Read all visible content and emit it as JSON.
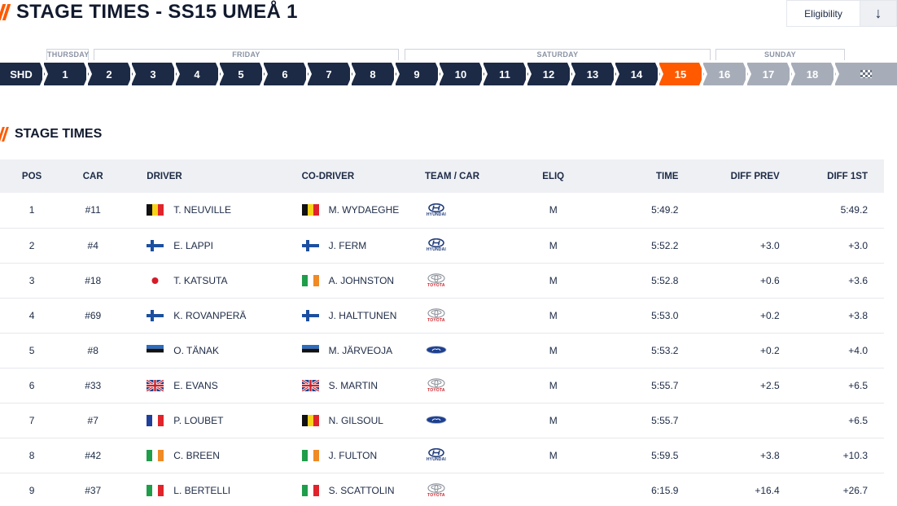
{
  "header": {
    "title": "STAGE TIMES - SS15 UMEÅ 1",
    "eligibility_label": "Eligibility",
    "sort_icon": "arrow-down-icon"
  },
  "days": [
    "THURSDAY",
    "FRIDAY",
    "SATURDAY",
    "SUNDAY"
  ],
  "stages": [
    "SHD",
    "1",
    "2",
    "3",
    "4",
    "5",
    "6",
    "7",
    "8",
    "9",
    "10",
    "11",
    "12",
    "13",
    "14",
    "15",
    "16",
    "17",
    "18"
  ],
  "current_stage": "15",
  "finish_icon": "checkered-flag-icon",
  "colors": {
    "accent": "#ff5a00",
    "navy": "#1c2a45",
    "grey": "#a7adb8"
  },
  "section": {
    "title": "STAGE TIMES"
  },
  "table": {
    "columns": [
      "POS",
      "CAR",
      "DRIVER",
      "CO-DRIVER",
      "TEAM / CAR",
      "ELIQ",
      "TIME",
      "DIFF PREV",
      "DIFF 1ST"
    ],
    "rows": [
      {
        "pos": "1",
        "car": "#11",
        "driver": "T. NEUVILLE",
        "driver_flag": "BE",
        "codriver": "M. WYDAEGHE",
        "codriver_flag": "BE",
        "team": "hyundai",
        "eliq": "M",
        "time": "5:49.2",
        "diff_prev": "",
        "diff_1st": "5:49.2"
      },
      {
        "pos": "2",
        "car": "#4",
        "driver": "E. LAPPI",
        "driver_flag": "FI",
        "codriver": "J. FERM",
        "codriver_flag": "FI",
        "team": "hyundai",
        "eliq": "M",
        "time": "5:52.2",
        "diff_prev": "+3.0",
        "diff_1st": "+3.0"
      },
      {
        "pos": "3",
        "car": "#18",
        "driver": "T. KATSUTA",
        "driver_flag": "JP",
        "codriver": "A. JOHNSTON",
        "codriver_flag": "IE",
        "team": "toyota",
        "eliq": "M",
        "time": "5:52.8",
        "diff_prev": "+0.6",
        "diff_1st": "+3.6"
      },
      {
        "pos": "4",
        "car": "#69",
        "driver": "K. ROVANPERÄ",
        "driver_flag": "FI",
        "codriver": "J. HALTTUNEN",
        "codriver_flag": "FI",
        "team": "toyota",
        "eliq": "M",
        "time": "5:53.0",
        "diff_prev": "+0.2",
        "diff_1st": "+3.8"
      },
      {
        "pos": "5",
        "car": "#8",
        "driver": "O. TÄNAK",
        "driver_flag": "EE",
        "codriver": "M. JÄRVEOJA",
        "codriver_flag": "EE",
        "team": "ford",
        "eliq": "M",
        "time": "5:53.2",
        "diff_prev": "+0.2",
        "diff_1st": "+4.0"
      },
      {
        "pos": "6",
        "car": "#33",
        "driver": "E. EVANS",
        "driver_flag": "GB",
        "codriver": "S. MARTIN",
        "codriver_flag": "GB",
        "team": "toyota",
        "eliq": "M",
        "time": "5:55.7",
        "diff_prev": "+2.5",
        "diff_1st": "+6.5"
      },
      {
        "pos": "7",
        "car": "#7",
        "driver": "P. LOUBET",
        "driver_flag": "FR",
        "codriver": "N. GILSOUL",
        "codriver_flag": "BE",
        "team": "ford",
        "eliq": "M",
        "time": "5:55.7",
        "diff_prev": "",
        "diff_1st": "+6.5"
      },
      {
        "pos": "8",
        "car": "#42",
        "driver": "C. BREEN",
        "driver_flag": "IE",
        "codriver": "J. FULTON",
        "codriver_flag": "IE",
        "team": "hyundai",
        "eliq": "M",
        "time": "5:59.5",
        "diff_prev": "+3.8",
        "diff_1st": "+10.3"
      },
      {
        "pos": "9",
        "car": "#37",
        "driver": "L. BERTELLI",
        "driver_flag": "IT",
        "codriver": "S. SCATTOLIN",
        "codriver_flag": "IT",
        "team": "toyota",
        "eliq": "",
        "time": "6:15.9",
        "diff_prev": "+16.4",
        "diff_1st": "+26.7"
      }
    ]
  },
  "brand_words": {
    "hyundai": "HYUNDAI",
    "toyota": "TOYOTA",
    "ford": ""
  }
}
